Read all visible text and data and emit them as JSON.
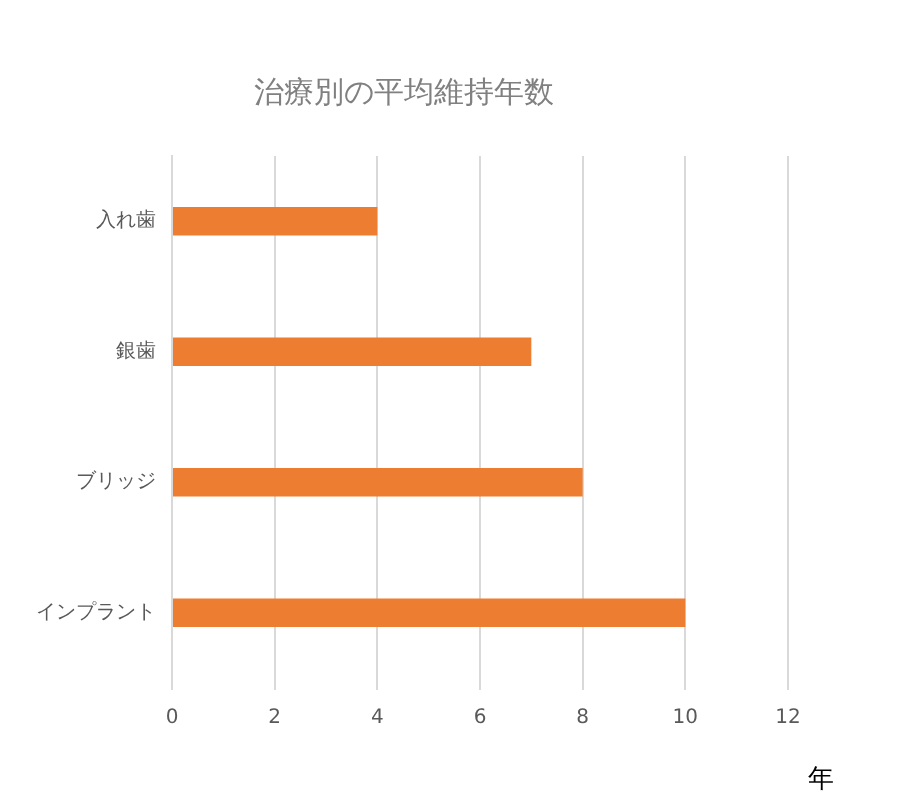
{
  "chart_data": {
    "type": "bar",
    "orientation": "horizontal",
    "title": "治療別の平均維持年数",
    "xlabel": "年",
    "categories": [
      "入れ歯",
      "銀歯",
      "ブリッジ",
      "インプラント"
    ],
    "values": [
      4,
      7,
      8,
      10
    ],
    "color": "#ed7d31",
    "xlim": [
      0,
      12
    ],
    "xticks": [
      0,
      2,
      4,
      6,
      8,
      10,
      12
    ],
    "grid": "x",
    "legend": false
  }
}
